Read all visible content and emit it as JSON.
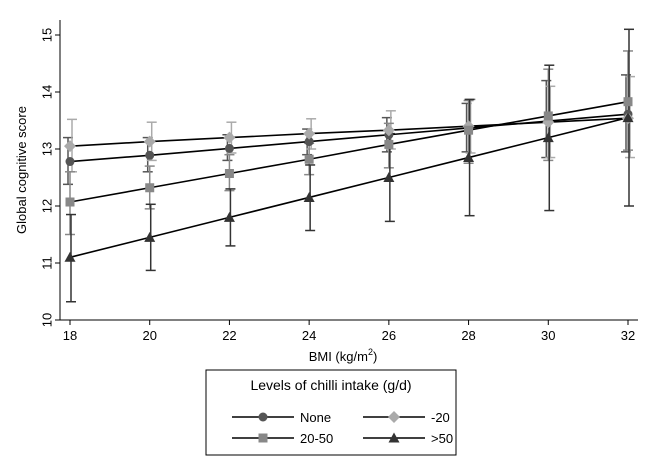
{
  "chart_data": {
    "type": "line",
    "title": "",
    "xlabel": "BMI (kg/m",
    "xlabel_sup": "2",
    "xlabel_close": ")",
    "ylabel": "Global cognitive score",
    "x": [
      18,
      20,
      22,
      24,
      26,
      28,
      30,
      32
    ],
    "xlim": [
      18,
      32
    ],
    "ylim": [
      10,
      15
    ],
    "xticks": [
      18,
      20,
      22,
      24,
      26,
      28,
      30,
      32
    ],
    "yticks": [
      10,
      11,
      12,
      13,
      14,
      15
    ],
    "legend": {
      "title": "Levels of chilli intake (g/d)",
      "position": "bottom",
      "labels": [
        "None",
        "-20",
        "20-50",
        ">50"
      ]
    },
    "series": [
      {
        "name": "None",
        "marker": "circle",
        "color": "#555555",
        "values": [
          12.78,
          12.89,
          13.01,
          13.13,
          13.25,
          13.37,
          13.49,
          13.61
        ],
        "ci_low": [
          12.38,
          12.6,
          12.8,
          12.9,
          12.95,
          12.95,
          12.85,
          12.95
        ],
        "ci_high": [
          13.2,
          13.2,
          13.25,
          13.35,
          13.55,
          13.8,
          14.2,
          14.3
        ]
      },
      {
        "name": "-20",
        "marker": "diamond",
        "color": "#aaaaaa",
        "values": [
          13.05,
          13.13,
          13.2,
          13.27,
          13.33,
          13.4,
          13.47,
          13.54
        ],
        "ci_low": [
          12.6,
          12.8,
          12.93,
          13.0,
          13.0,
          12.93,
          12.85,
          12.85
        ],
        "ci_high": [
          13.52,
          13.47,
          13.47,
          13.53,
          13.67,
          13.87,
          14.1,
          14.27
        ]
      },
      {
        "name": "20-50",
        "marker": "square",
        "color": "#888888",
        "values": [
          12.07,
          12.32,
          12.57,
          12.82,
          13.08,
          13.33,
          13.58,
          13.83
        ],
        "ci_low": [
          11.5,
          11.95,
          12.27,
          12.55,
          12.67,
          12.75,
          12.8,
          12.98
        ],
        "ci_high": [
          12.6,
          12.7,
          12.9,
          13.1,
          13.45,
          13.85,
          14.4,
          14.72
        ]
      },
      {
        "name": ">50",
        "marker": "triangle",
        "color": "#333333",
        "values": [
          11.1,
          11.45,
          11.8,
          12.15,
          12.5,
          12.85,
          13.2,
          13.55
        ],
        "ci_low": [
          10.32,
          10.87,
          11.3,
          11.57,
          11.73,
          11.83,
          11.92,
          12.0
        ],
        "ci_high": [
          11.85,
          12.03,
          12.3,
          12.72,
          13.27,
          13.87,
          14.47,
          15.1
        ]
      }
    ]
  }
}
